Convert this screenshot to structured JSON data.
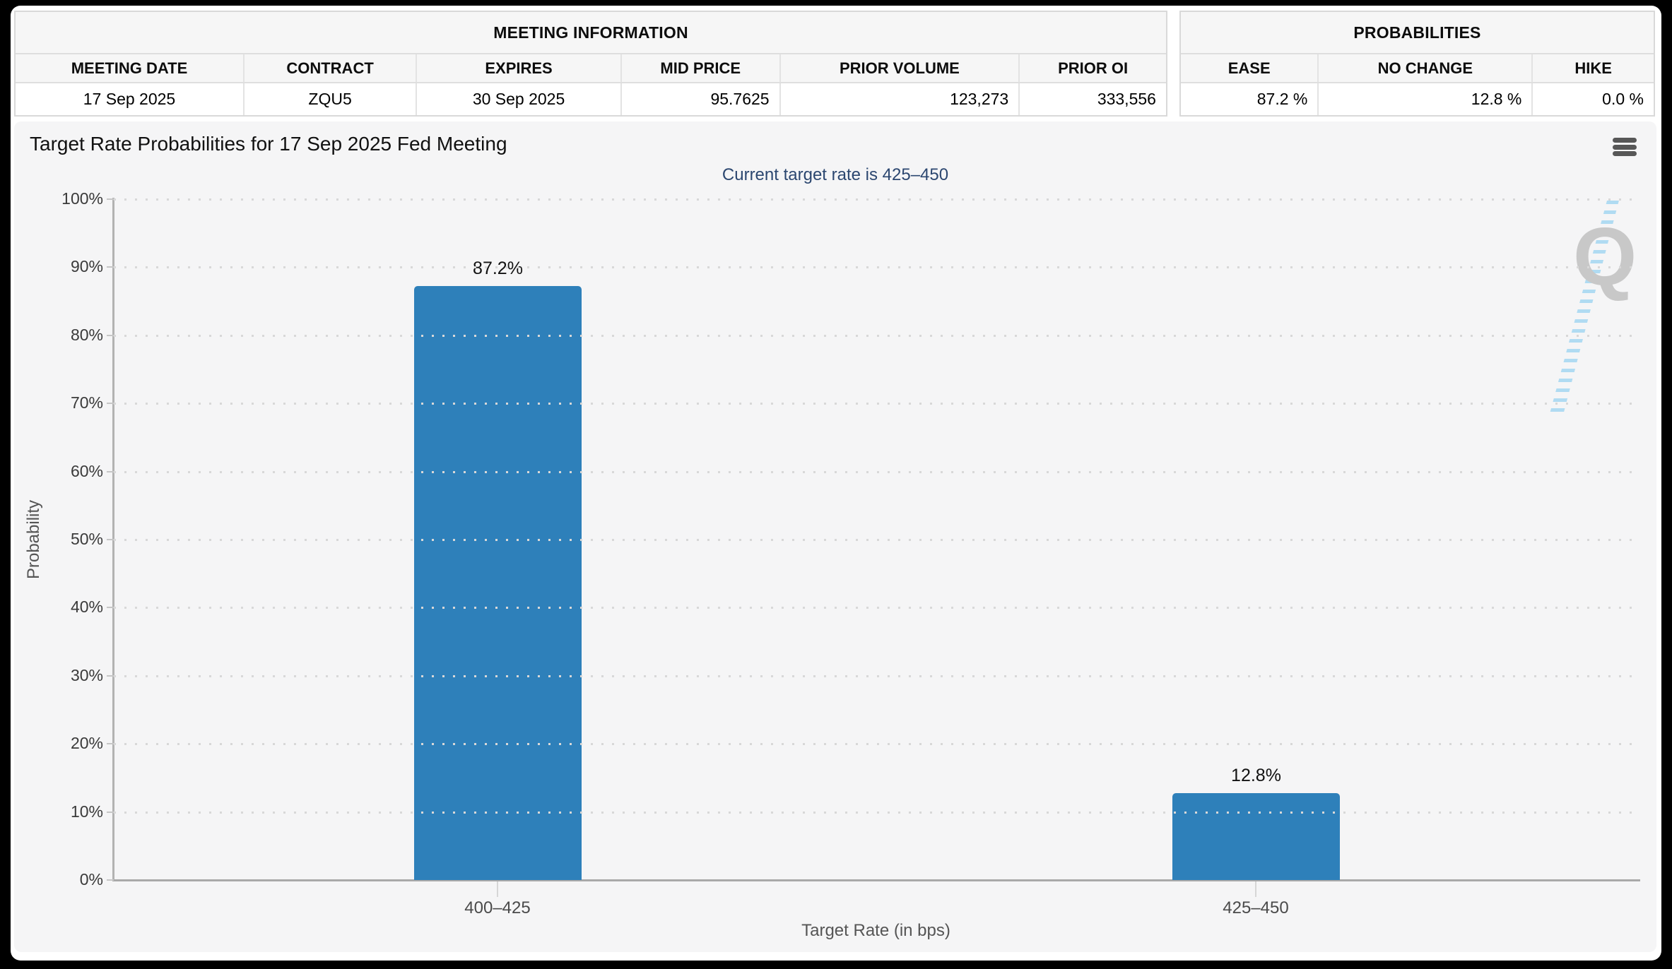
{
  "meeting_information": {
    "title": "MEETING INFORMATION",
    "columns": [
      "MEETING DATE",
      "CONTRACT",
      "EXPIRES",
      "MID PRICE",
      "PRIOR VOLUME",
      "PRIOR OI"
    ],
    "row": {
      "meeting_date": "17 Sep 2025",
      "contract": "ZQU5",
      "expires": "30 Sep 2025",
      "mid_price": "95.7625",
      "prior_volume": "123,273",
      "prior_oi": "333,556"
    }
  },
  "probabilities": {
    "title": "PROBABILITIES",
    "columns": [
      "EASE",
      "NO CHANGE",
      "HIKE"
    ],
    "row": {
      "ease": "87.2 %",
      "no_change": "12.8 %",
      "hike": "0.0 %"
    }
  },
  "chart_data": {
    "type": "bar",
    "title": "Target Rate Probabilities for 17 Sep 2025 Fed Meeting",
    "subtitle": "Current target rate is 425–450",
    "categories": [
      "400–425",
      "425–450"
    ],
    "values": [
      87.2,
      12.8
    ],
    "value_labels": [
      "87.2%",
      "12.8%"
    ],
    "xlabel": "Target Rate (in bps)",
    "ylabel": "Probability",
    "ylim": [
      0,
      100
    ],
    "yticks": [
      0,
      10,
      20,
      30,
      40,
      50,
      60,
      70,
      80,
      90,
      100
    ],
    "ytick_labels": [
      "0%",
      "10%",
      "20%",
      "30%",
      "40%",
      "50%",
      "60%",
      "70%",
      "80%",
      "90%",
      "100%"
    ],
    "grid": "horizontal-dotted",
    "legend": "none",
    "bar_color": "#2e80ba"
  },
  "icons": {
    "menu": "hamburger-icon",
    "watermark_letter": "Q"
  },
  "colors": {
    "frame": "#000000",
    "page_bg": "#ffffff",
    "chart_bg": "#f5f5f6",
    "bar_blue": "#2e80ba",
    "subtitle_navy": "#2c4770",
    "table_header_bg": "#f6f6f6",
    "table_border": "#d9d9d9"
  }
}
